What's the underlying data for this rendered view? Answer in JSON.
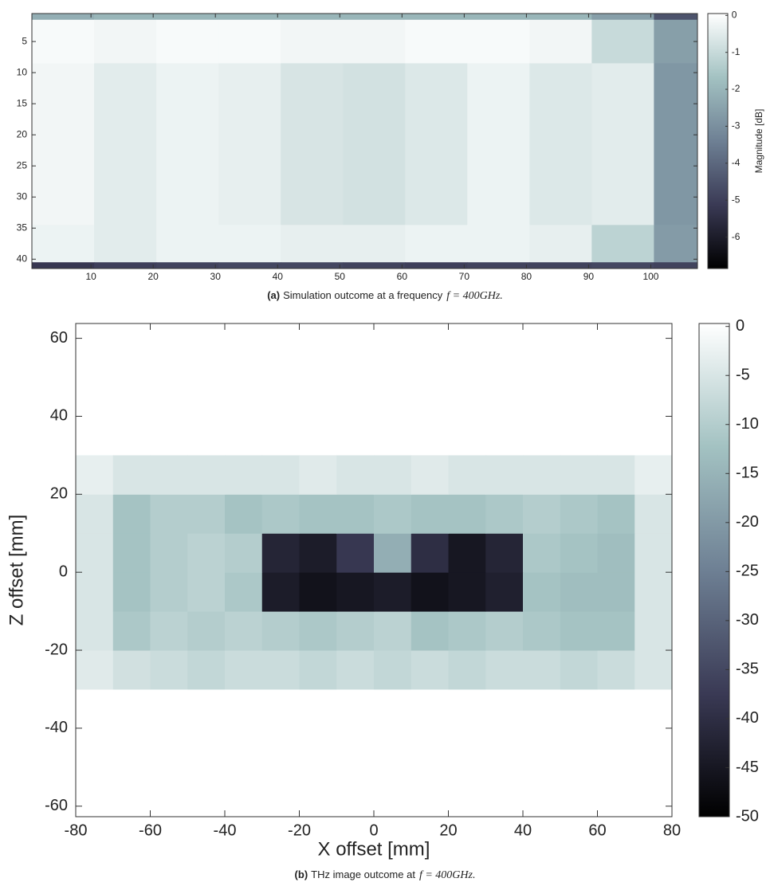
{
  "chart_data": [
    {
      "type": "heatmap",
      "caption_label": "(a)",
      "caption": "Simulation outcome at a frequency",
      "caption_math": "f = 400GHz.",
      "colorbar_label": "Magnitude [dB]",
      "xbins": [
        0.5,
        10.5,
        20.5,
        30.5,
        40.5,
        50.5,
        60.5,
        70.5,
        80.5,
        90.5,
        100.5,
        107.5
      ],
      "ybins": [
        0.5,
        1.5,
        8.5,
        34.5,
        40.5,
        41.5
      ],
      "values": [
        [
          -2.2,
          -2.0,
          -2.0,
          -2.0,
          -2.0,
          -2.0,
          -2.0,
          -2.0,
          -2.0,
          -2.6,
          -4.5
        ],
        [
          -0.1,
          -0.2,
          -0.1,
          -0.1,
          -0.2,
          -0.2,
          -0.1,
          -0.1,
          -0.2,
          -1.0,
          -2.6
        ],
        [
          -0.2,
          -0.5,
          -0.3,
          -0.4,
          -0.7,
          -0.8,
          -0.6,
          -0.3,
          -0.6,
          -0.5,
          -2.8
        ],
        [
          -0.3,
          -0.5,
          -0.3,
          -0.3,
          -0.4,
          -0.4,
          -0.3,
          -0.3,
          -0.4,
          -1.2,
          -2.7
        ],
        [
          -5.2,
          -5.0,
          -4.9,
          -4.8,
          -4.8,
          -4.9,
          -5.0,
          -4.9,
          -4.9,
          -4.8,
          -4.9
        ]
      ],
      "xlim": [
        0.5,
        107.5
      ],
      "ylim": [
        0.5,
        41.5
      ],
      "y_reversed": true,
      "xticks": [
        10,
        20,
        30,
        40,
        50,
        60,
        70,
        80,
        90,
        100
      ],
      "yticks": [
        5,
        10,
        15,
        20,
        25,
        30,
        35,
        40
      ],
      "clim": [
        -6.85,
        0.05
      ],
      "cticks": [
        0,
        -1,
        -2,
        -3,
        -4,
        -5,
        -6
      ],
      "colormap": [
        "#000000",
        "#3a3a55",
        "#6e8094",
        "#a3c2c2",
        "#ffffff"
      ]
    },
    {
      "type": "heatmap",
      "caption_label": "(b)",
      "caption": "THz image outcome at",
      "caption_math": "f = 400GHz.",
      "xlabel": "X offset [mm]",
      "ylabel": "Z offset [mm]",
      "xbins": [
        -80,
        -70,
        -60,
        -50,
        -40,
        -30,
        -20,
        -10,
        0,
        10,
        20,
        30,
        40,
        50,
        60,
        70,
        80
      ],
      "ybins": [
        -30,
        -20,
        -10,
        0,
        10,
        20,
        30
      ],
      "values": [
        [
          -4,
          -6,
          -7,
          -8,
          -7,
          -7,
          -8,
          -7,
          -8,
          -7,
          -8,
          -7,
          -7,
          -8,
          -7,
          -5
        ],
        [
          -5,
          -11,
          -9,
          -10,
          -9,
          -10,
          -11,
          -10,
          -9,
          -12,
          -11,
          -10,
          -11,
          -12,
          -12,
          -5
        ],
        [
          -5,
          -12,
          -10,
          -9,
          -11,
          -44,
          -46,
          -45,
          -44,
          -46,
          -45,
          -43,
          -12,
          -13,
          -13,
          -5
        ],
        [
          -5,
          -12,
          -10,
          -9,
          -10,
          -42,
          -44,
          -38,
          -16,
          -40,
          -45,
          -42,
          -11,
          -12,
          -13,
          -5
        ],
        [
          -5,
          -12,
          -10,
          -10,
          -12,
          -11,
          -12,
          -12,
          -11,
          -12,
          -12,
          -11,
          -10,
          -11,
          -12,
          -5
        ],
        [
          -3,
          -5,
          -5,
          -5,
          -5,
          -5,
          -4,
          -5,
          -5,
          -4,
          -5,
          -5,
          -5,
          -5,
          -5,
          -3
        ]
      ],
      "xlim": [
        -80,
        80
      ],
      "ylim": [
        -62.7,
        63.8
      ],
      "xticks": [
        -80,
        -60,
        -40,
        -20,
        0,
        20,
        40,
        60,
        80
      ],
      "yticks": [
        -60,
        -40,
        -20,
        0,
        20,
        40,
        60
      ],
      "clim": [
        -50,
        0.3
      ],
      "cticks": [
        0,
        -5,
        -10,
        -15,
        -20,
        -25,
        -30,
        -35,
        -40,
        -45,
        -50
      ],
      "colormap": [
        "#000000",
        "#3a3a55",
        "#6e8094",
        "#a3c2c2",
        "#ffffff"
      ]
    }
  ]
}
